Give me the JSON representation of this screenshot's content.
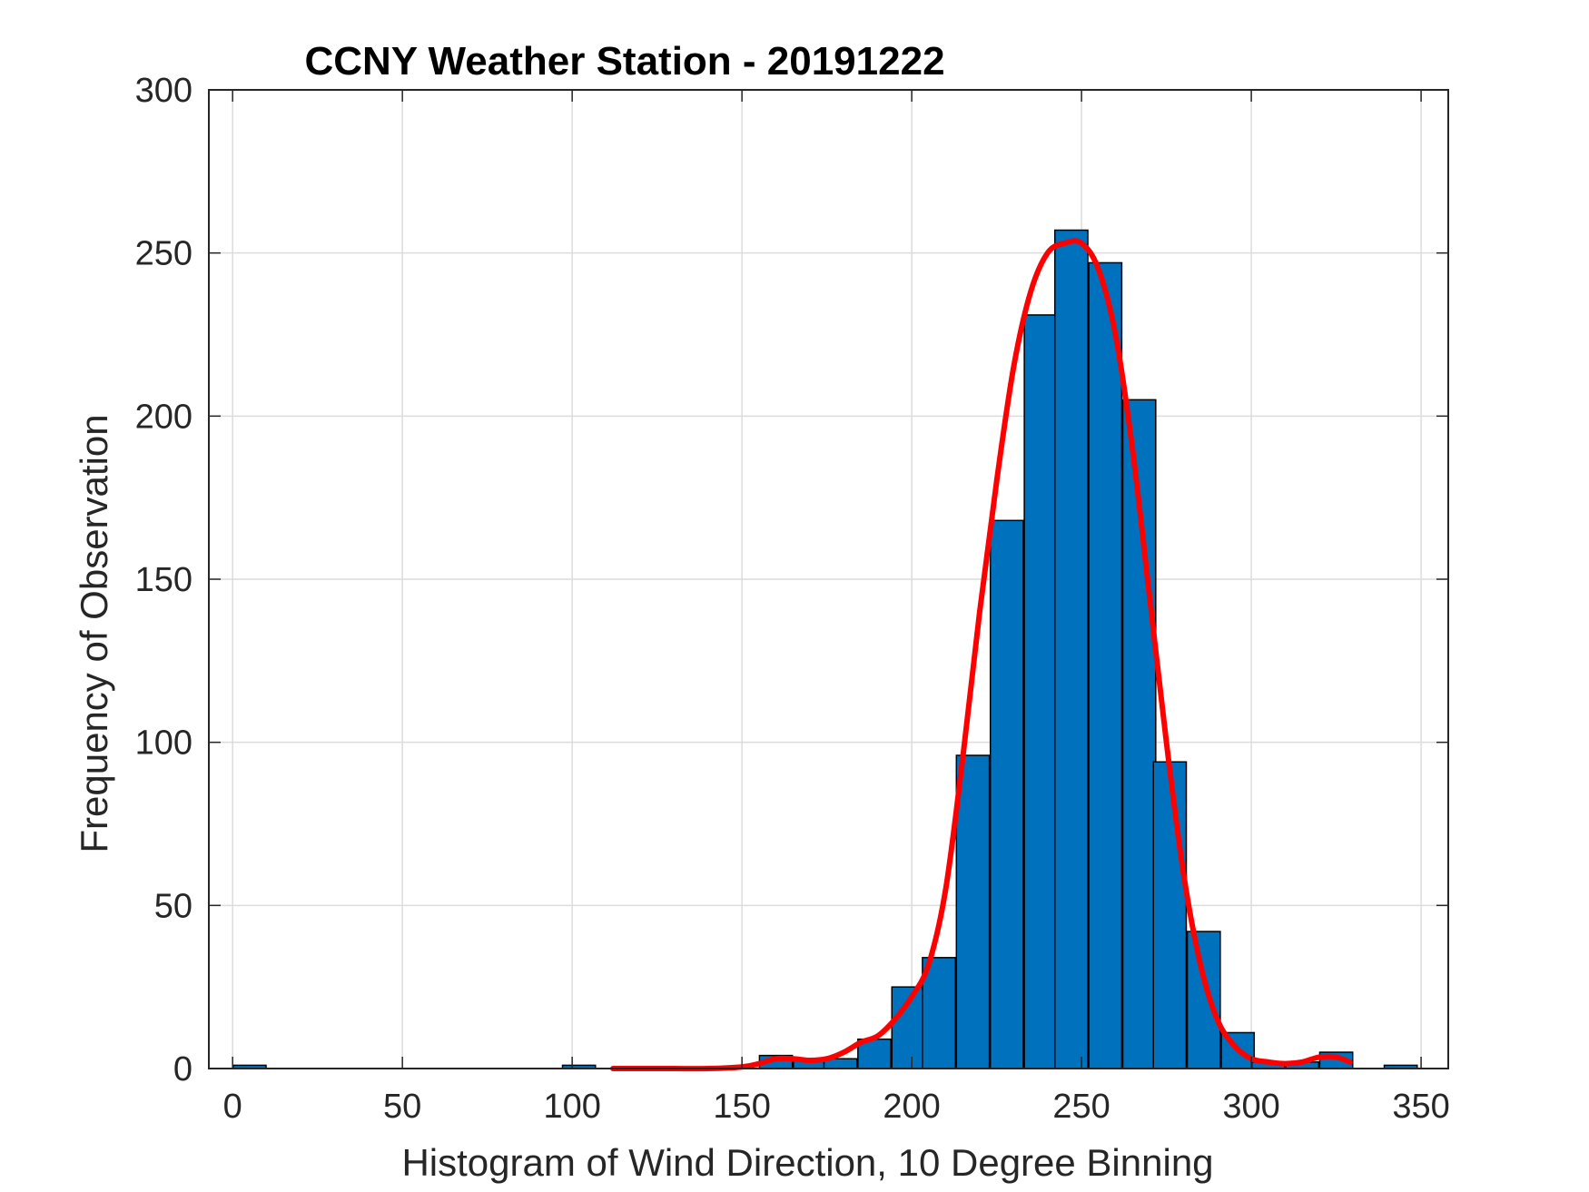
{
  "chart_data": {
    "type": "bar",
    "title": "CCNY Weather Station - 20191222",
    "xlabel": "Histogram of Wind Direction, 10 Degree Binning",
    "ylabel": "Frequency of Observation",
    "xlim": [
      -7,
      358
    ],
    "ylim": [
      0,
      300
    ],
    "xticks": [
      0,
      50,
      100,
      150,
      200,
      250,
      300,
      350
    ],
    "yticks": [
      0,
      50,
      100,
      150,
      200,
      250,
      300
    ],
    "grid": true,
    "bin_width": 9.7,
    "bins": [
      {
        "x": 5,
        "count": 1
      },
      {
        "x": 102,
        "count": 1
      },
      {
        "x": 160,
        "count": 4
      },
      {
        "x": 170,
        "count": 3
      },
      {
        "x": 179,
        "count": 3
      },
      {
        "x": 189,
        "count": 9
      },
      {
        "x": 199,
        "count": 25
      },
      {
        "x": 208,
        "count": 34
      },
      {
        "x": 218,
        "count": 96
      },
      {
        "x": 228,
        "count": 168
      },
      {
        "x": 238,
        "count": 231
      },
      {
        "x": 247,
        "count": 257
      },
      {
        "x": 257,
        "count": 247
      },
      {
        "x": 267,
        "count": 205
      },
      {
        "x": 276,
        "count": 94
      },
      {
        "x": 286,
        "count": 42
      },
      {
        "x": 296,
        "count": 11
      },
      {
        "x": 305,
        "count": 2
      },
      {
        "x": 315,
        "count": 2
      },
      {
        "x": 325,
        "count": 5
      },
      {
        "x": 344,
        "count": 1
      }
    ],
    "fit_curve": {
      "x": [
        112,
        120,
        130,
        140,
        150,
        155,
        160,
        165,
        170,
        175,
        180,
        185,
        190,
        195,
        200,
        205,
        210,
        215,
        220,
        225,
        230,
        235,
        240,
        245,
        250,
        255,
        260,
        265,
        270,
        275,
        280,
        285,
        290,
        295,
        300,
        305,
        310,
        315,
        320,
        325,
        329
      ],
      "y": [
        0,
        0,
        0,
        0,
        0.5,
        1.5,
        3,
        3,
        2.5,
        3,
        5,
        8,
        10,
        15,
        22,
        32,
        55,
        95,
        140,
        180,
        215,
        238,
        250,
        253,
        253,
        245,
        225,
        190,
        145,
        100,
        60,
        32,
        15,
        7,
        3,
        2,
        1.5,
        2,
        3.5,
        3.5,
        2
      ],
      "color": "#ff0000"
    },
    "bar_color": "#0072bd",
    "bar_edge_color": "#000000"
  }
}
